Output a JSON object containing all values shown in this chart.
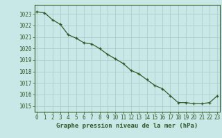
{
  "x": [
    0,
    1,
    2,
    3,
    4,
    5,
    6,
    7,
    8,
    9,
    10,
    11,
    12,
    13,
    14,
    15,
    16,
    17,
    18,
    19,
    20,
    21,
    22,
    23
  ],
  "y": [
    1023.2,
    1023.1,
    1022.5,
    1022.1,
    1021.2,
    1020.9,
    1020.5,
    1020.4,
    1020.0,
    1019.5,
    1019.1,
    1018.7,
    1018.1,
    1017.8,
    1017.3,
    1016.8,
    1016.5,
    1015.9,
    1015.3,
    1015.3,
    1015.2,
    1015.2,
    1015.3,
    1015.9
  ],
  "line_color": "#2d5a27",
  "marker": "+",
  "bg_color": "#c8e8e8",
  "grid_color": "#a8c8c8",
  "ylabel_ticks": [
    1015,
    1016,
    1017,
    1018,
    1019,
    1020,
    1021,
    1022,
    1023
  ],
  "ylim": [
    1014.5,
    1023.8
  ],
  "xlim": [
    -0.3,
    23.3
  ],
  "xlabel": "Graphe pression niveau de la mer (hPa)",
  "axis_color": "#2d5a27",
  "tick_fontsize": 5.5,
  "xlabel_fontsize": 6.5
}
